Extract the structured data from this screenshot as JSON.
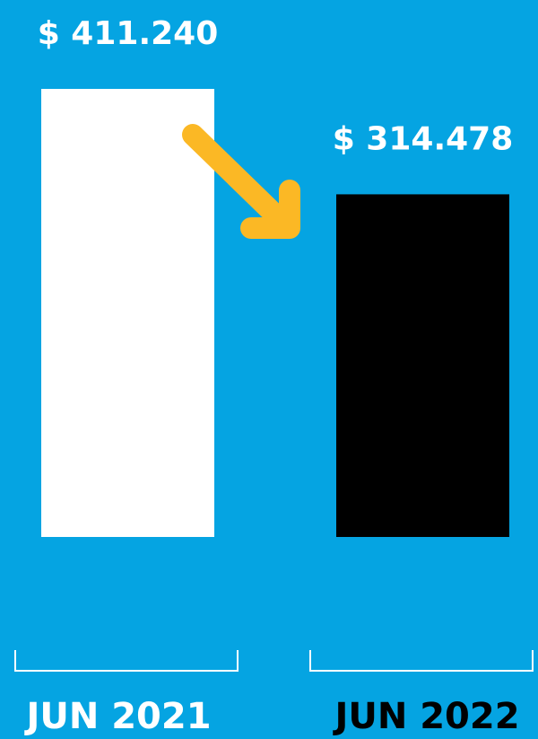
{
  "chart_data": {
    "type": "bar",
    "categories": [
      "JUN 2021",
      "JUN 2022"
    ],
    "values": [
      411240,
      314478
    ],
    "value_labels": [
      "$ 411.240",
      "$ 314.478"
    ],
    "colors": [
      "#ffffff",
      "#000000"
    ]
  }
}
